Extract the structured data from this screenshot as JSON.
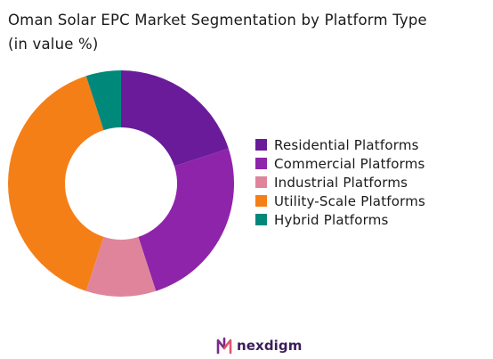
{
  "title": {
    "line1": "Oman Solar EPC Market Segmentation by Platform Type",
    "line2": "(in value %)"
  },
  "brand": {
    "name": "nexdigm",
    "color": "#3b1e5a"
  },
  "chart_data": {
    "type": "pie",
    "variant": "donut",
    "title": "Oman Solar EPC Market Segmentation by Platform Type (in value %)",
    "legend_position": "right",
    "start_angle_deg": 0,
    "direction": "clockwise",
    "slices": [
      {
        "label": "Residential Platforms",
        "value": 20,
        "color": "#6a1b9a"
      },
      {
        "label": "Commercial Platforms",
        "value": 25,
        "color": "#8e24aa"
      },
      {
        "label": "Industrial Platforms",
        "value": 10,
        "color": "#e0849c"
      },
      {
        "label": "Utility-Scale Platforms",
        "value": 40,
        "color": "#f57f17"
      },
      {
        "label": "Hybrid Platforms",
        "value": 5,
        "color": "#00897b"
      }
    ]
  }
}
